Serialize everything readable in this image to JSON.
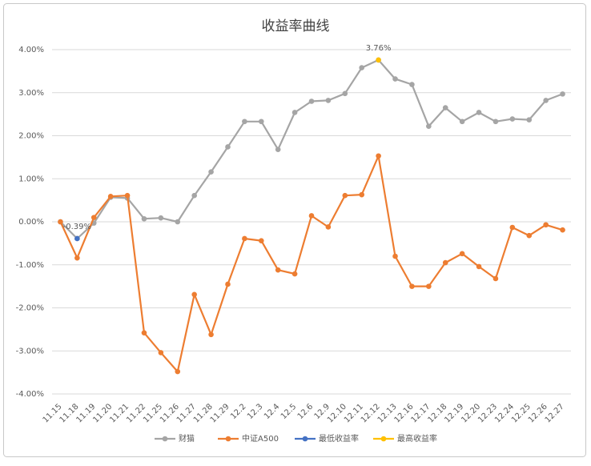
{
  "chart_data": {
    "type": "line",
    "title": "收益率曲线",
    "categories": [
      "11.15",
      "11.18",
      "11.19",
      "11.20",
      "11.21",
      "11.22",
      "11.25",
      "11.26",
      "11.27",
      "11.28",
      "11.29",
      "12.2",
      "12.3",
      "12.4",
      "12.5",
      "12.6",
      "12.9",
      "12.10",
      "12.11",
      "12.12",
      "12.13",
      "12.16",
      "12.17",
      "12.18",
      "12.19",
      "12.20",
      "12.23",
      "12.24",
      "12.25",
      "12.26",
      "12.27"
    ],
    "series": [
      {
        "name": "财猫",
        "color": "#a5a5a5",
        "values": [
          0,
          -0.39,
          -0.03,
          0.57,
          0.55,
          0.07,
          0.09,
          0.0,
          0.61,
          1.16,
          1.74,
          2.33,
          2.33,
          1.68,
          2.54,
          2.8,
          2.82,
          2.98,
          3.58,
          3.76,
          3.32,
          3.19,
          2.22,
          2.65,
          2.33,
          2.54,
          2.33,
          2.39,
          2.37,
          2.82,
          2.97
        ]
      },
      {
        "name": "中证A500",
        "color": "#ed7d31",
        "values": [
          0.0,
          -0.84,
          0.1,
          0.59,
          0.61,
          -2.58,
          -3.04,
          -3.48,
          -1.69,
          -2.62,
          -1.45,
          -0.39,
          -0.44,
          -1.12,
          -1.21,
          0.14,
          -0.12,
          0.61,
          0.63,
          1.53,
          -0.8,
          -1.5,
          -1.5,
          -0.95,
          -0.74,
          -1.04,
          -1.32,
          -0.13,
          -0.32,
          -0.07,
          -0.19
        ]
      },
      {
        "name": "最低收益率",
        "color": "#4472c4",
        "values": [
          null,
          -0.39,
          null,
          null,
          null,
          null,
          null,
          null,
          null,
          null,
          null,
          null,
          null,
          null,
          null,
          null,
          null,
          null,
          null,
          null,
          null,
          null,
          null,
          null,
          null,
          null,
          null,
          null,
          null,
          null,
          null
        ],
        "value_labels": [
          null,
          "-0.39%",
          null,
          null,
          null,
          null,
          null,
          null,
          null,
          null,
          null,
          null,
          null,
          null,
          null,
          null,
          null,
          null,
          null,
          null,
          null,
          null,
          null,
          null,
          null,
          null,
          null,
          null,
          null,
          null,
          null
        ]
      },
      {
        "name": "最高收益率",
        "color": "#ffc000",
        "values": [
          null,
          null,
          null,
          null,
          null,
          null,
          null,
          null,
          null,
          null,
          null,
          null,
          null,
          null,
          null,
          null,
          null,
          null,
          null,
          3.76,
          null,
          null,
          null,
          null,
          null,
          null,
          null,
          null,
          null,
          null,
          null
        ],
        "value_labels": [
          null,
          null,
          null,
          null,
          null,
          null,
          null,
          null,
          null,
          null,
          null,
          null,
          null,
          null,
          null,
          null,
          null,
          null,
          null,
          "3.76%",
          null,
          null,
          null,
          null,
          null,
          null,
          null,
          null,
          null,
          null,
          null
        ]
      }
    ],
    "ylim": [
      -4,
      4
    ],
    "yticks": [
      {
        "value": -4,
        "label": "-4.00%"
      },
      {
        "value": -3,
        "label": "-3.00%"
      },
      {
        "value": -2,
        "label": "-2.00%"
      },
      {
        "value": -1,
        "label": "-1.00%"
      },
      {
        "value": 0,
        "label": "0.00%"
      },
      {
        "value": 1,
        "label": "1.00%"
      },
      {
        "value": 2,
        "label": "2.00%"
      },
      {
        "value": 3,
        "label": "3.00%"
      },
      {
        "value": 4,
        "label": "4.00%"
      }
    ],
    "grid": true,
    "legend": "bottom"
  }
}
